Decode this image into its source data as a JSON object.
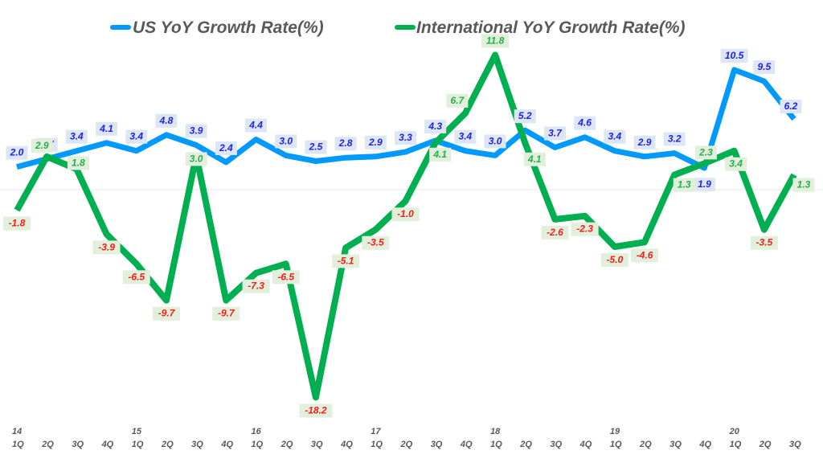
{
  "chart_data": {
    "type": "line",
    "title": "",
    "xlabel": "",
    "ylabel": "",
    "legend_position": "top-center",
    "grid": false,
    "zero_line": true,
    "ylim": [
      -19,
      13
    ],
    "year_labels": [
      "14",
      "",
      "",
      "",
      "15",
      "",
      "",
      "",
      "16",
      "",
      "",
      "",
      "17",
      "",
      "",
      "",
      "18",
      "",
      "",
      "",
      "19",
      "",
      "",
      "",
      "20",
      "",
      ""
    ],
    "categories": [
      "1Q",
      "2Q",
      "3Q",
      "4Q",
      "1Q",
      "2Q",
      "3Q",
      "4Q",
      "1Q",
      "2Q",
      "3Q",
      "4Q",
      "1Q",
      "2Q",
      "3Q",
      "4Q",
      "1Q",
      "2Q",
      "3Q",
      "4Q",
      "1Q",
      "2Q",
      "3Q",
      "4Q",
      "1Q",
      "2Q",
      "3Q"
    ],
    "series": [
      {
        "name": "US YoY Growth Rate(%)",
        "color": "#0099FF",
        "label_color": "#1F1FE6",
        "label_bg": "#DCE6F5",
        "values": [
          2.0,
          2.7,
          3.4,
          4.1,
          3.4,
          4.8,
          3.9,
          2.4,
          4.4,
          3.0,
          2.5,
          2.8,
          2.9,
          3.3,
          4.3,
          3.4,
          3.0,
          5.2,
          3.7,
          4.6,
          3.4,
          2.9,
          3.2,
          1.9,
          10.5,
          9.5,
          6.2
        ]
      },
      {
        "name": "International YoY Growth Rate(%)",
        "color": "#00B050",
        "label_color_positive": "#22B14C",
        "label_color_negative": "#FF1A1A",
        "label_bg": "#E2EFDA",
        "values": [
          -1.8,
          2.9,
          1.8,
          -3.9,
          -6.5,
          -9.7,
          3.0,
          -9.7,
          -7.3,
          -6.5,
          -18.2,
          -5.1,
          -3.5,
          -1.0,
          4.1,
          6.7,
          11.8,
          4.1,
          -2.6,
          -2.3,
          -5.0,
          -4.6,
          1.3,
          2.3,
          3.4,
          -3.5,
          1.3
        ]
      }
    ]
  }
}
